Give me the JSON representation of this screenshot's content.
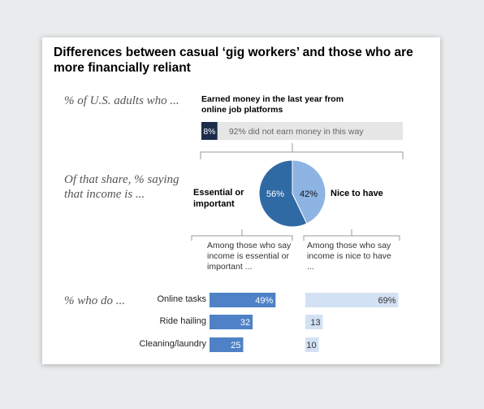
{
  "title": "Differences between casual ‘gig workers’ and those who are more financially reliant",
  "row_label_1": "% of U.S. adults who ...",
  "header_1": "Earned money in the last year from online job platforms",
  "row_label_2": "Of that share, % saying that income is ...",
  "row_label_3": "% who do ...",
  "colors": {
    "dark_navy": "#1b2d4b",
    "light_gray": "#e6e6e6",
    "dark_blue": "#2f6aa5",
    "light_blue": "#8db4e2",
    "bar_blue": "#4f81c7",
    "pale_blue": "#d3e1f4"
  },
  "chart_data": [
    {
      "type": "bar",
      "orientation": "horizontal-stacked",
      "segments": [
        {
          "label": "8%",
          "value": 8,
          "text": ""
        },
        {
          "label": "92%",
          "value": 92,
          "text": "did not earn money in this way"
        }
      ]
    },
    {
      "type": "pie",
      "slices": [
        {
          "name": "Essential or important",
          "value": 56,
          "label": "56%"
        },
        {
          "name": "Nice to have",
          "value": 42,
          "label": "42%"
        }
      ]
    },
    {
      "type": "bar",
      "orientation": "horizontal",
      "group_headers": [
        "Among those who say income is essential or important ...",
        "Among those who say income is nice to have ..."
      ],
      "categories": [
        "Online tasks",
        "Ride hailing",
        "Cleaning/laundry"
      ],
      "series": [
        {
          "values": [
            49,
            32,
            25
          ],
          "labels": [
            "49%",
            "32",
            "25"
          ]
        },
        {
          "values": [
            69,
            13,
            10
          ],
          "labels": [
            "69%",
            "13",
            "10"
          ]
        }
      ]
    }
  ]
}
